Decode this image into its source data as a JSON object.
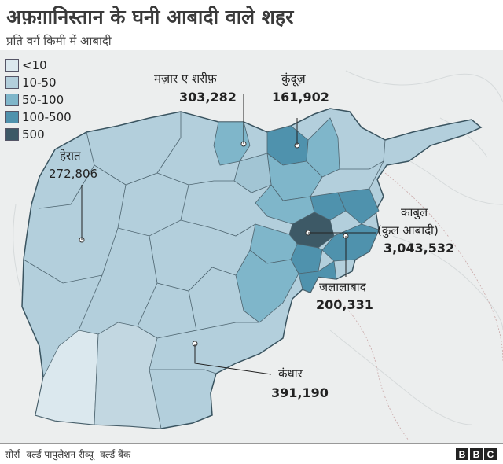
{
  "header": {
    "title": "अफ़ग़ानिस्तान के घनी आबादी वाले शहर",
    "subtitle": "प्रति वर्ग किमी में आबादी"
  },
  "legend": {
    "items": [
      {
        "label": "<10",
        "color": "#dbe8ee"
      },
      {
        "label": "10-50",
        "color": "#b3cfdc"
      },
      {
        "label": "50-100",
        "color": "#7fb6ca"
      },
      {
        "label": "100-500",
        "color": "#4f92ad"
      },
      {
        "label": "500",
        "color": "#3d5966"
      }
    ]
  },
  "cities": {
    "mazar": {
      "name": "मज़ार ए शरीफ़",
      "population": "303,282"
    },
    "kunduz": {
      "name": "कुंदूज़",
      "population": "161,902"
    },
    "herat": {
      "name": "हेरात",
      "population": "272,806"
    },
    "kabul": {
      "name": "काबुल",
      "note": "(कुल आबादी)",
      "population": "3,043,532"
    },
    "jalalabad": {
      "name": "जलालाबाद",
      "population": "200,331"
    },
    "kandahar": {
      "name": "कंधार",
      "population": "391,190"
    }
  },
  "footer": {
    "source": "सोर्स- वर्ल्ड पापुलेशन रीव्यू- वर्ल्ड बैंक",
    "logo_letters": [
      "B",
      "B",
      "C"
    ]
  }
}
